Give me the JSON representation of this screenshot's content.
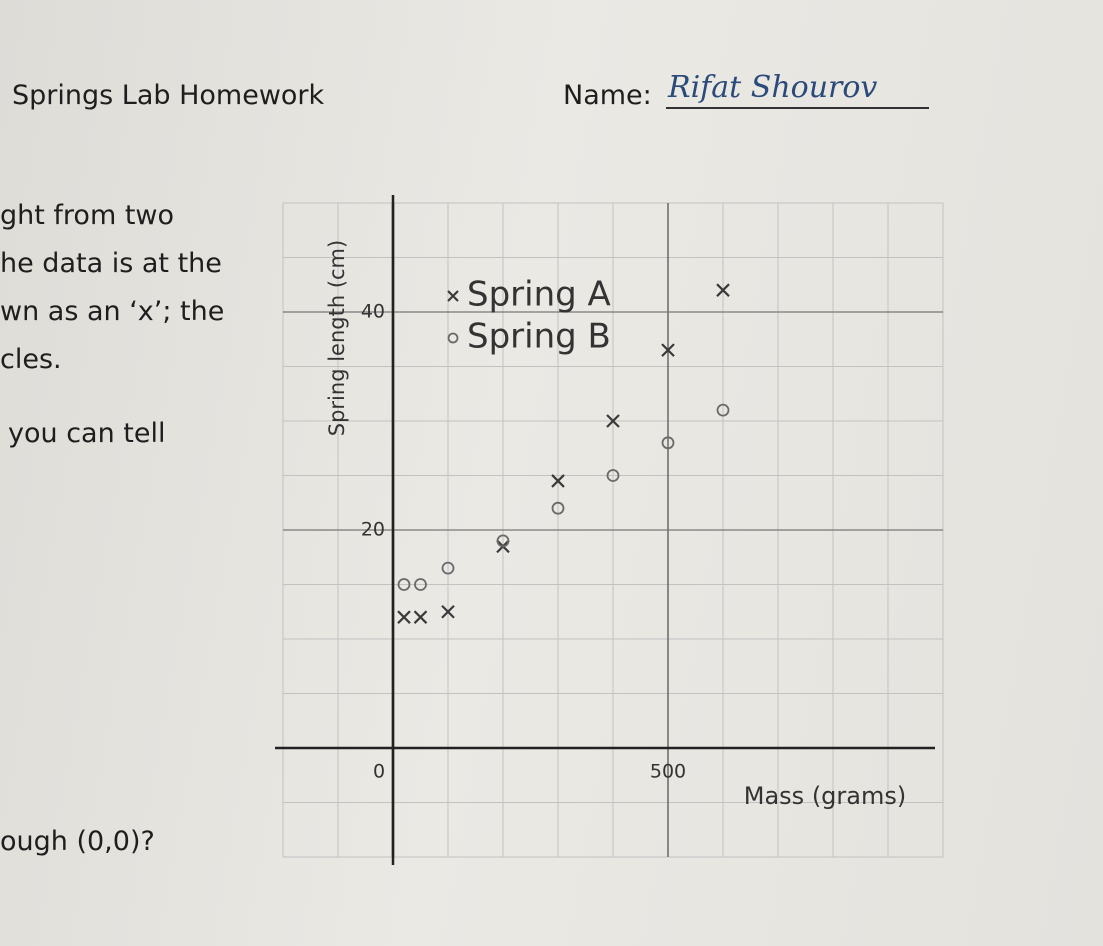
{
  "header": {
    "title": "Springs Lab Homework",
    "name_label": "Name:",
    "name_value": "Rifat Shourov"
  },
  "body_lines": [
    "ght from two",
    "he data is at the",
    "wn as an ‘x’; the",
    "cles.",
    "you can tell",
    "ough (0,0)?"
  ],
  "chart_data": {
    "type": "scatter",
    "x_label": "Mass (grams)",
    "y_label": "Spring length (cm)",
    "xlim": [
      -200,
      1000
    ],
    "ylim": [
      -10,
      50
    ],
    "xticks": [
      0,
      500
    ],
    "yticks": [
      20,
      40
    ],
    "xgrid": [
      -200,
      -100,
      100,
      200,
      300,
      400,
      600,
      700,
      800,
      900,
      1000
    ],
    "ygrid": [
      -10,
      -5,
      5,
      10,
      15,
      25,
      30,
      35,
      45,
      50
    ],
    "grid": true,
    "series": [
      {
        "name": "Spring A",
        "marker": "x",
        "color": "#3a3a3a",
        "x": [
          20,
          50,
          100,
          200,
          300,
          400,
          500,
          600
        ],
        "values": [
          12,
          12,
          12.5,
          18.5,
          24.5,
          30,
          36.5,
          42
        ]
      },
      {
        "name": "Spring B",
        "marker": "o",
        "color": "#6a6a6a",
        "x": [
          20,
          50,
          100,
          200,
          300,
          400,
          500,
          600
        ],
        "values": [
          15,
          15,
          16.5,
          19,
          22,
          25,
          28,
          31
        ]
      }
    ]
  }
}
